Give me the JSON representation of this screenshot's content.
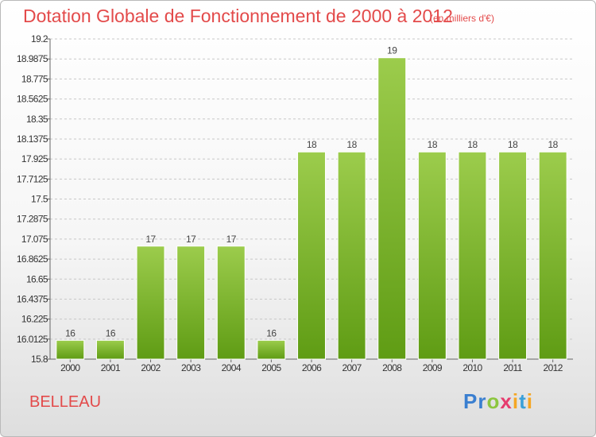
{
  "header": {
    "title": "Dotation Globale de Fonctionnement de 2000 à 2012",
    "subtitle": "(en milliers d'€)"
  },
  "footer": {
    "city": "BELLEAU",
    "logo_text": "Proxiti",
    "logo_letters": [
      {
        "ch": "P",
        "color": "#3a7fd0"
      },
      {
        "ch": "r",
        "color": "#3a7fd0"
      },
      {
        "ch": "o",
        "color": "#8cc63f"
      },
      {
        "ch": "x",
        "color": "#e63c6e"
      },
      {
        "ch": "i",
        "color": "#f5a623"
      },
      {
        "ch": "t",
        "color": "#3aa0d9"
      },
      {
        "ch": "i",
        "color": "#f5a623"
      }
    ]
  },
  "colors": {
    "title": "#e34a4a",
    "bar_top": "#9ccc4c",
    "bar_bottom": "#5f9c14",
    "gridline": "#c8c8c8"
  },
  "chart_data": {
    "type": "bar",
    "categories": [
      "2000",
      "2001",
      "2002",
      "2003",
      "2004",
      "2005",
      "2006",
      "2007",
      "2008",
      "2009",
      "2010",
      "2011",
      "2012"
    ],
    "values": [
      16,
      16,
      17,
      17,
      17,
      16,
      18,
      18,
      19,
      18,
      18,
      18,
      18
    ],
    "data_labels": [
      "16",
      "16",
      "17",
      "17",
      "17",
      "16",
      "18",
      "18",
      "19",
      "18",
      "18",
      "18",
      "18"
    ],
    "yticks": [
      15.8,
      16.0125,
      16.225,
      16.4375,
      16.65,
      16.8625,
      17.075,
      17.2875,
      17.5,
      17.7125,
      17.925,
      18.1375,
      18.35,
      18.5625,
      18.775,
      18.9875,
      19.2
    ],
    "ytick_labels": [
      "15.8",
      "16.0125",
      "16.225",
      "16.4375",
      "16.65",
      "16.8625",
      "17.075",
      "17.2875",
      "17.5",
      "17.7125",
      "17.925",
      "18.1375",
      "18.35",
      "18.5625",
      "18.775",
      "18.9875",
      "19.2"
    ],
    "ylim": [
      15.8,
      19.2
    ],
    "grid": true,
    "xlabel": "",
    "ylabel": ""
  }
}
